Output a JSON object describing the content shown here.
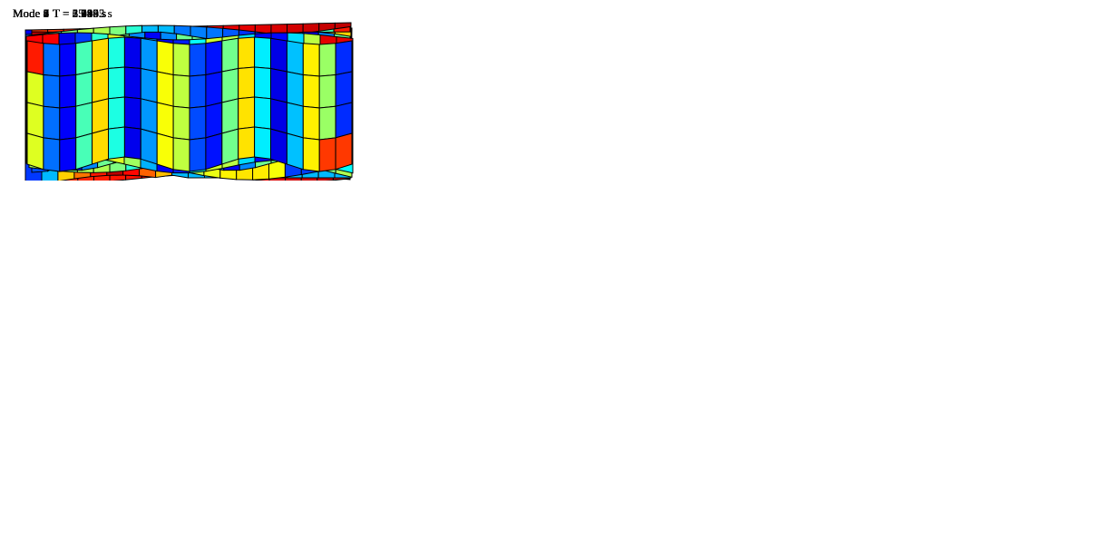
{
  "figure": {
    "modes": [
      {
        "label": "Mode 1",
        "period": "T = 25.195 s"
      },
      {
        "label": "Mode 2",
        "period": "T = 15.862 s"
      },
      {
        "label": "Mode 3",
        "period": "T = 6.580 s"
      },
      {
        "label": "Mode 4",
        "period": "T = 5.195 s"
      },
      {
        "label": "Mode 5",
        "period": "T = 3.944 s"
      },
      {
        "label": "Mode 6",
        "period": "T = 3.623 s"
      },
      {
        "label": "Mode 7",
        "period": "T = 2.445 s"
      },
      {
        "label": "Mode 8",
        "period": "T = 2.189 s"
      },
      {
        "label": "Mode 9",
        "period": "T = 1.993 s"
      }
    ],
    "colormap": "jet",
    "mesh_color": "#000000"
  }
}
